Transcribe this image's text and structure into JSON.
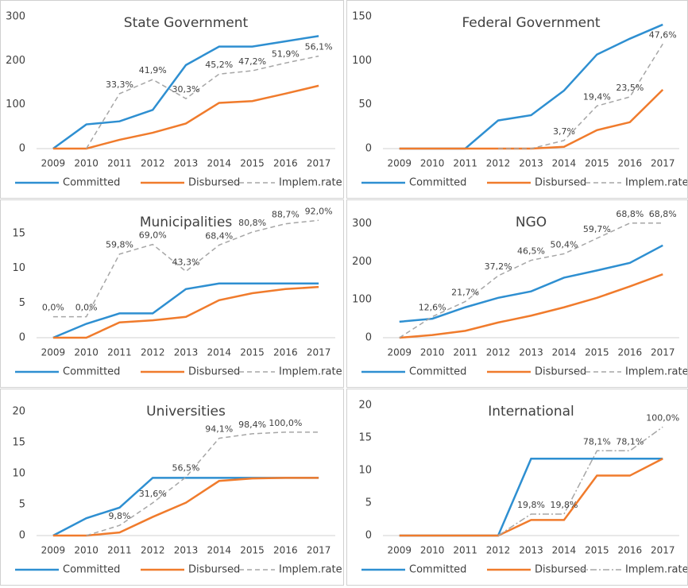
{
  "chart_data": [
    {
      "type": "line",
      "title": "State Government",
      "categories": [
        "2009",
        "2010",
        "2011",
        "2012",
        "2013",
        "2014",
        "2015",
        "2016",
        "2017"
      ],
      "ylim": [
        0,
        300
      ],
      "yticks": [
        0,
        100,
        200,
        300
      ],
      "y2lim": [
        0,
        80
      ],
      "legend": "bottom",
      "series": [
        {
          "name": "Committed",
          "color": "#2e8fd1",
          "dash": "solid",
          "values": [
            0,
            55,
            62,
            88,
            190,
            232,
            232,
            244,
            256
          ]
        },
        {
          "name": "Disbursed",
          "color": "#f07b2c",
          "dash": "solid",
          "values": [
            0,
            0,
            20,
            36,
            57,
            104,
            108,
            125,
            143
          ]
        },
        {
          "name": "Implem.rate",
          "color": "#a6a6a6",
          "dash": "dashed",
          "axis": "y2",
          "values": [
            null,
            0,
            33.3,
            41.9,
            30.3,
            45.2,
            47.2,
            51.9,
            56.1
          ],
          "value_labels": [
            null,
            null,
            "33,3%",
            "41,9%",
            "30,3%",
            "45,2%",
            "47,2%",
            "51,9%",
            "56,1%"
          ]
        }
      ]
    },
    {
      "type": "line",
      "title": "Federal Government",
      "categories": [
        "2009",
        "2010",
        "2011",
        "2012",
        "2013",
        "2014",
        "2015",
        "2016",
        "2017"
      ],
      "ylim": [
        0,
        150
      ],
      "yticks": [
        0,
        50,
        100,
        150
      ],
      "y2lim": [
        0,
        60
      ],
      "legend": "bottom",
      "series": [
        {
          "name": "Committed",
          "color": "#2e8fd1",
          "dash": "solid",
          "values": [
            0,
            0,
            0,
            32,
            38,
            66,
            107,
            125,
            141
          ]
        },
        {
          "name": "Disbursed",
          "color": "#f07b2c",
          "dash": "solid",
          "values": [
            0,
            0,
            0,
            0,
            0,
            2,
            21,
            30,
            67
          ]
        },
        {
          "name": "Implem.rate",
          "color": "#a6a6a6",
          "dash": "dashed",
          "axis": "y2",
          "values": [
            null,
            null,
            null,
            0,
            0,
            3.7,
            19.4,
            23.5,
            47.6
          ],
          "value_labels": [
            null,
            null,
            null,
            null,
            null,
            "3,7%",
            "19,4%",
            "23,5%",
            "47,6%"
          ]
        }
      ]
    },
    {
      "type": "line",
      "title": "Municipalities",
      "categories": [
        "2009",
        "2010",
        "2011",
        "2012",
        "2013",
        "2014",
        "2015",
        "2016",
        "2017"
      ],
      "ylim": [
        0,
        17.5
      ],
      "yticks": [
        0,
        5,
        10,
        15
      ],
      "y2lim": [
        -20,
        96
      ],
      "legend": "bottom",
      "series": [
        {
          "name": "Committed",
          "color": "#2e8fd1",
          "dash": "solid",
          "values": [
            0,
            2,
            3.5,
            3.5,
            7,
            7.8,
            7.8,
            7.8,
            7.8
          ]
        },
        {
          "name": "Disbursed",
          "color": "#f07b2c",
          "dash": "solid",
          "values": [
            0,
            0,
            2.2,
            2.5,
            3,
            5.4,
            6.4,
            7,
            7.3
          ]
        },
        {
          "name": "Implem.rate",
          "color": "#a6a6a6",
          "dash": "dashed",
          "axis": "y2",
          "values": [
            0,
            0,
            59.8,
            69.0,
            43.3,
            68.4,
            80.8,
            88.7,
            92.0
          ],
          "value_labels": [
            "0,0%",
            "0,0%",
            "59,8%",
            "69,0%",
            "43,3%",
            "68,4%",
            "80,8%",
            "88,7%",
            "92,0%"
          ]
        }
      ]
    },
    {
      "type": "line",
      "title": "NGO",
      "categories": [
        "2009",
        "2010",
        "2011",
        "2012",
        "2013",
        "2014",
        "2015",
        "2016",
        "2017"
      ],
      "ylim": [
        0,
        320
      ],
      "yticks": [
        0,
        100,
        200,
        300
      ],
      "y2lim": [
        0,
        73
      ],
      "legend": "bottom",
      "series": [
        {
          "name": "Committed",
          "color": "#2e8fd1",
          "dash": "solid",
          "values": [
            42,
            50,
            80,
            105,
            122,
            158,
            177,
            197,
            243
          ]
        },
        {
          "name": "Disbursed",
          "color": "#f07b2c",
          "dash": "solid",
          "values": [
            0,
            7,
            18,
            40,
            58,
            80,
            105,
            135,
            167
          ]
        },
        {
          "name": "Implem.rate",
          "color": "#a6a6a6",
          "dash": "dashed",
          "axis": "y2",
          "values": [
            0,
            12.6,
            21.7,
            37.2,
            46.5,
            50.4,
            59.7,
            68.8,
            68.8
          ],
          "value_labels": [
            null,
            "12,6%",
            "21,7%",
            "37,2%",
            "46,5%",
            "50,4%",
            "59,7%",
            "68,8%",
            "68,8%"
          ]
        }
      ]
    },
    {
      "type": "line",
      "title": "Universities",
      "categories": [
        "2009",
        "2010",
        "2011",
        "2012",
        "2013",
        "2014",
        "2015",
        "2016",
        "2017"
      ],
      "ylim": [
        0,
        21
      ],
      "yticks": [
        0,
        5,
        10,
        15,
        20
      ],
      "y2lim": [
        0,
        126
      ],
      "legend": "bottom",
      "series": [
        {
          "name": "Committed",
          "color": "#2e8fd1",
          "dash": "solid",
          "values": [
            0,
            2.8,
            4.5,
            9.3,
            9.3,
            9.3,
            9.3,
            9.3,
            9.3
          ]
        },
        {
          "name": "Disbursed",
          "color": "#f07b2c",
          "dash": "solid",
          "values": [
            0,
            0,
            0.5,
            3,
            5.3,
            8.8,
            9.2,
            9.3,
            9.3
          ]
        },
        {
          "name": "Implem.rate",
          "color": "#a6a6a6",
          "dash": "dashed",
          "axis": "y2",
          "values": [
            null,
            0,
            9.8,
            31.6,
            56.5,
            94.1,
            98.4,
            100.0,
            100.0
          ],
          "value_labels": [
            null,
            null,
            "9,8%",
            "31,6%",
            "56,5%",
            "94,1%",
            "98,4%",
            "100,0%",
            null
          ]
        }
      ]
    },
    {
      "type": "line",
      "title": "International",
      "categories": [
        "2009",
        "2010",
        "2011",
        "2012",
        "2013",
        "2014",
        "2015",
        "2016",
        "2017"
      ],
      "ylim": [
        0,
        20
      ],
      "yticks": [
        0,
        5,
        10,
        15,
        20
      ],
      "y2lim": [
        0,
        120
      ],
      "legend": "bottom",
      "series": [
        {
          "name": "Committed",
          "color": "#2e8fd1",
          "dash": "solid",
          "values": [
            0,
            0,
            0,
            0,
            11.8,
            11.8,
            11.8,
            11.8,
            11.8
          ]
        },
        {
          "name": "Disbursed",
          "color": "#f07b2c",
          "dash": "solid",
          "values": [
            0,
            0,
            0,
            0,
            2.4,
            2.4,
            9.2,
            9.2,
            11.8
          ]
        },
        {
          "name": "Implem.rate",
          "color": "#a6a6a6",
          "dash": "dashdot",
          "axis": "y2",
          "values": [
            null,
            null,
            null,
            0,
            19.8,
            19.8,
            78.1,
            78.1,
            100.0
          ],
          "value_labels": [
            null,
            null,
            null,
            null,
            "19,8%",
            "19,8%",
            "78,1%",
            "78,1%",
            "100,0%"
          ]
        }
      ]
    }
  ]
}
